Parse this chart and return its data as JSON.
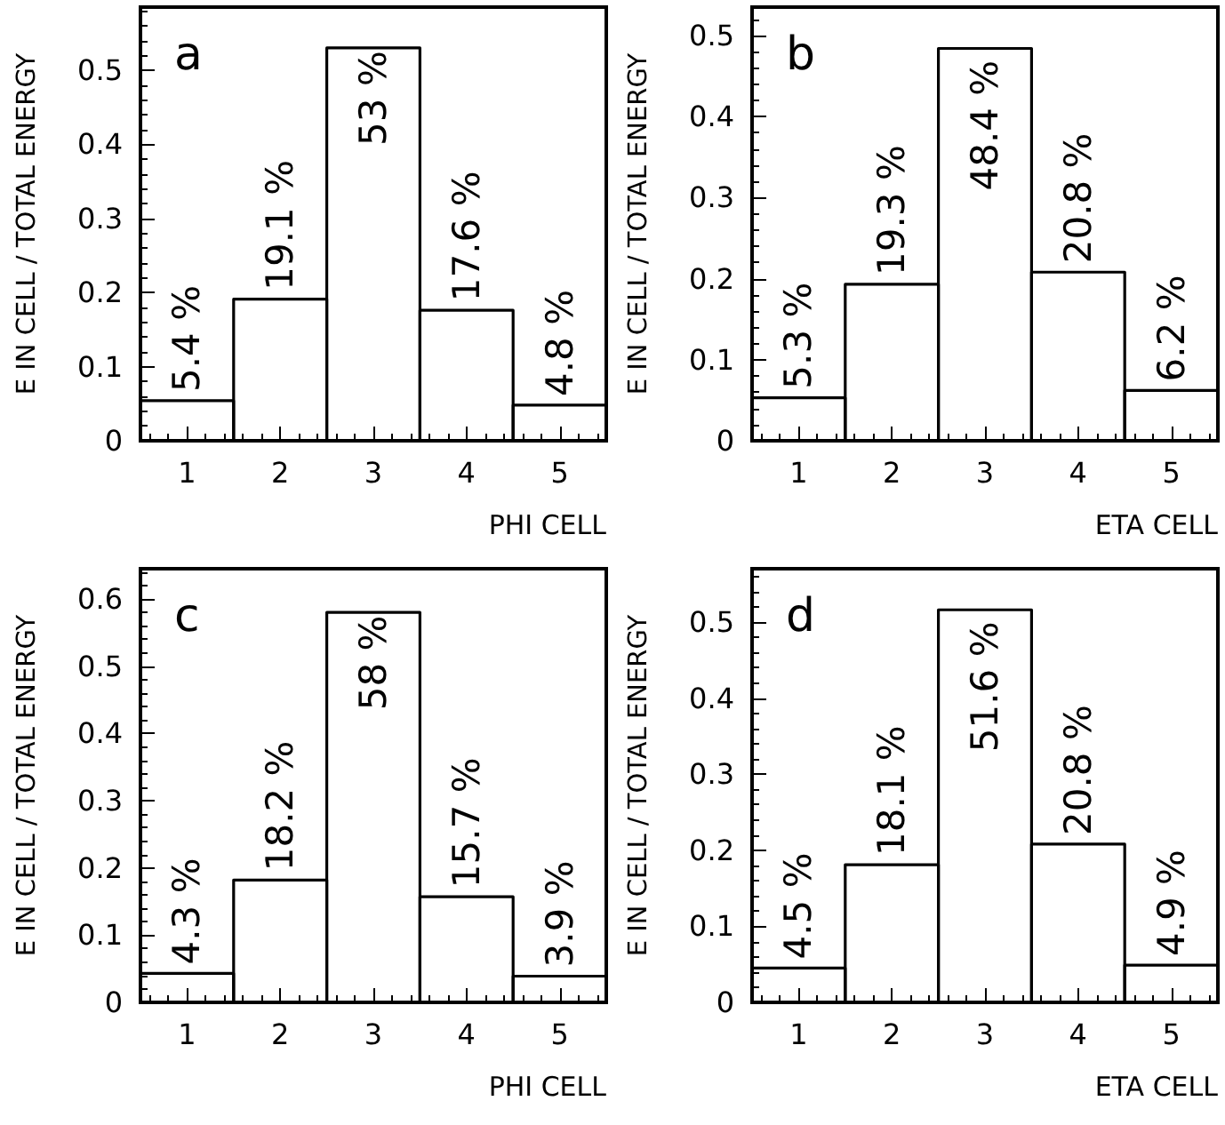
{
  "chart_data": [
    {
      "type": "histogram",
      "annotations": [
        "a"
      ],
      "xlabel": "PHI CELL",
      "ylabel": "E IN CELL / TOTAL ENERGY",
      "bins": [
        0.5,
        1.5,
        2.5,
        3.5,
        4.5,
        5.5
      ],
      "values": [
        0.054,
        0.191,
        0.53,
        0.176,
        0.048
      ],
      "value_labels": [
        "5.4 %",
        "19.1 %",
        "53 %",
        "17.6 %",
        "4.8 %"
      ],
      "color": "#000000",
      "xlim": [
        0.5,
        5.5
      ],
      "xticks": [
        1,
        2,
        3,
        4,
        5
      ],
      "ylim": [
        0,
        0.585
      ],
      "yticks": [
        0,
        0.1,
        0.2,
        0.3,
        0.4,
        0.5
      ],
      "grid": false
    },
    {
      "type": "histogram",
      "annotations": [
        "b"
      ],
      "xlabel": "ETA CELL",
      "ylabel": "E IN CELL / TOTAL ENERGY",
      "bins": [
        0.5,
        1.5,
        2.5,
        3.5,
        4.5,
        5.5
      ],
      "values": [
        0.053,
        0.193,
        0.484,
        0.208,
        0.062
      ],
      "value_labels": [
        "5.3 %",
        "19.3 %",
        "48.4 %",
        "20.8 %",
        "6.2 %"
      ],
      "color": "#000000",
      "xlim": [
        0.5,
        5.5
      ],
      "xticks": [
        1,
        2,
        3,
        4,
        5
      ],
      "ylim": [
        0,
        0.535
      ],
      "yticks": [
        0,
        0.1,
        0.2,
        0.3,
        0.4,
        0.5
      ],
      "grid": false
    },
    {
      "type": "histogram",
      "annotations": [
        "c"
      ],
      "xlabel": "PHI CELL",
      "ylabel": "E IN CELL / TOTAL ENERGY",
      "bins": [
        0.5,
        1.5,
        2.5,
        3.5,
        4.5,
        5.5
      ],
      "values": [
        0.043,
        0.182,
        0.58,
        0.157,
        0.039
      ],
      "value_labels": [
        "4.3 %",
        "18.2 %",
        "58 %",
        "15.7 %",
        "3.9 %"
      ],
      "color": "#000000",
      "xlim": [
        0.5,
        5.5
      ],
      "xticks": [
        1,
        2,
        3,
        4,
        5
      ],
      "ylim": [
        0,
        0.645
      ],
      "yticks": [
        0,
        0.1,
        0.2,
        0.3,
        0.4,
        0.5,
        0.6
      ],
      "grid": false
    },
    {
      "type": "histogram",
      "annotations": [
        "d"
      ],
      "xlabel": "ETA CELL",
      "ylabel": "E IN CELL / TOTAL ENERGY",
      "bins": [
        0.5,
        1.5,
        2.5,
        3.5,
        4.5,
        5.5
      ],
      "values": [
        0.045,
        0.181,
        0.516,
        0.208,
        0.049
      ],
      "value_labels": [
        "4.5 %",
        "18.1 %",
        "51.6 %",
        "20.8 %",
        "4.9 %"
      ],
      "color": "#000000",
      "xlim": [
        0.5,
        5.5
      ],
      "xticks": [
        1,
        2,
        3,
        4,
        5
      ],
      "ylim": [
        0,
        0.57
      ],
      "yticks": [
        0,
        0.1,
        0.2,
        0.3,
        0.4,
        0.5
      ],
      "grid": false
    }
  ]
}
